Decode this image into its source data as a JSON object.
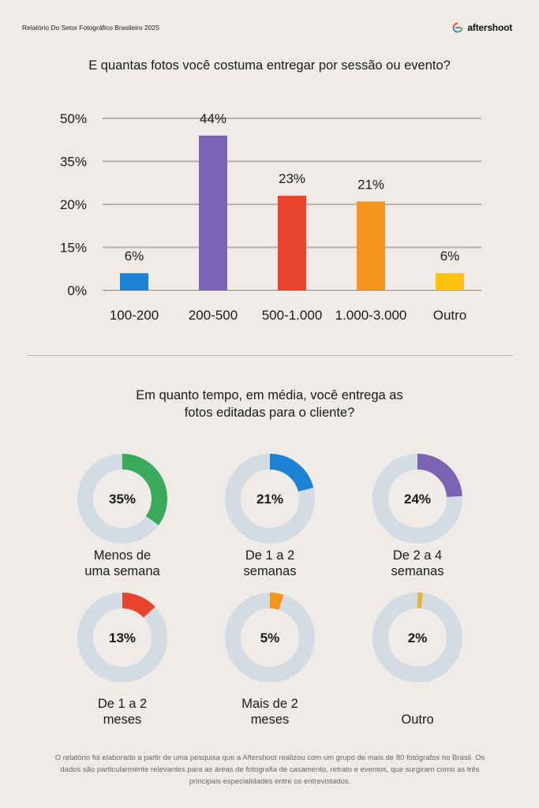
{
  "header": {
    "report_title": "Relatório Do Setor Fotográfico Brasileiro 2025",
    "brand_name": "aftershoot"
  },
  "bar_section": {
    "question": "E quantas fotos você costuma entregar por sessão ou evento?"
  },
  "donut_section": {
    "question_line1": "Em quanto tempo, em média, você entrega as",
    "question_line2": "fotos editadas para o cliente?"
  },
  "footnote": {
    "line1": "O relatório foi elaborado a partir de uma pesquisa que a Aftershoot realizou com um grupo de mais de 80 fotógrafos no Brasil. Os",
    "line2": "dados são particularmente relevantes para as áreas de fotografia de casamento, retrato e eventos, que surgiram como as três",
    "line3": "principais especialidades entre os entrevistados."
  },
  "chart_data": [
    {
      "type": "bar",
      "title": "E quantas fotos você costuma entregar por sessão ou evento?",
      "categories": [
        "100-200",
        "200-500",
        "500-1.000",
        "1.000-3.000",
        "Outro"
      ],
      "values": [
        6,
        44,
        23,
        21,
        6
      ],
      "value_labels": [
        "6%",
        "44%",
        "23%",
        "21%",
        "6%"
      ],
      "colors": [
        "#1c83d4",
        "#7b64b3",
        "#e8432b",
        "#f7941d",
        "#fcc10f"
      ],
      "y_ticks": [
        0,
        15,
        20,
        35,
        50
      ],
      "y_tick_labels": [
        "0%",
        "15%",
        "20%",
        "35%",
        "50%"
      ],
      "grid": true
    },
    {
      "type": "pie",
      "title": "Em quanto tempo, em média, você entrega as fotos editadas para o cliente?",
      "track_color": "#d3dbe5",
      "items": [
        {
          "value": 35,
          "value_label": "35%",
          "label_lines": [
            "Menos de",
            "uma semana"
          ],
          "color": "#3aab5c"
        },
        {
          "value": 21,
          "value_label": "21%",
          "label_lines": [
            "De 1 a 2",
            "semanas"
          ],
          "color": "#1c83d4"
        },
        {
          "value": 24,
          "value_label": "24%",
          "label_lines": [
            "De 2 a 4",
            "semanas"
          ],
          "color": "#7b64b3"
        },
        {
          "value": 13,
          "value_label": "13%",
          "label_lines": [
            "De 1 a 2",
            "meses"
          ],
          "color": "#e8432b"
        },
        {
          "value": 5,
          "value_label": "5%",
          "label_lines": [
            "Mais de 2",
            "meses"
          ],
          "color": "#f7941d"
        },
        {
          "value": 2,
          "value_label": "2%",
          "label_lines": [
            "Outro"
          ],
          "color": "#e0b63a"
        }
      ]
    }
  ]
}
